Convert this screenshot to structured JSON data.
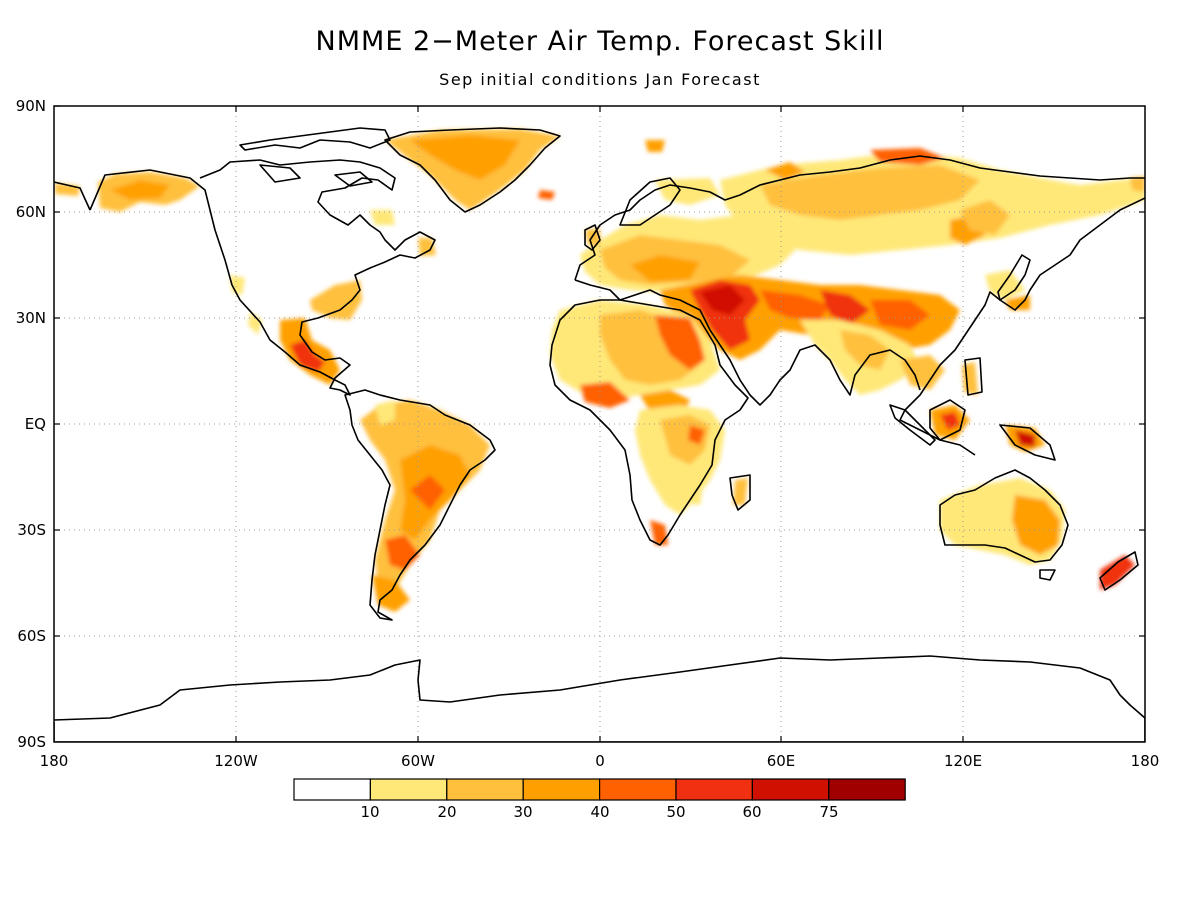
{
  "title": "NMME 2−Meter Air Temp. Forecast Skill",
  "subtitle": "Sep initial conditions   Jan Forecast",
  "lat_labels": [
    "90N",
    "60N",
    "30N",
    "EQ",
    "30S",
    "60S",
    "90S"
  ],
  "lon_labels": [
    "180",
    "120W",
    "60W",
    "0",
    "60E",
    "120E",
    "180"
  ],
  "colorbar": {
    "colors": [
      "#ffffff",
      "#ffe878",
      "#ffc03c",
      "#ffa000",
      "#ff6000",
      "#f03010",
      "#d01000",
      "#a00000"
    ],
    "labels": [
      "10",
      "20",
      "30",
      "40",
      "50",
      "60",
      "75"
    ]
  },
  "map": {
    "projection": "cylindrical",
    "gridlines": true,
    "land_outline_color": "#000000"
  }
}
